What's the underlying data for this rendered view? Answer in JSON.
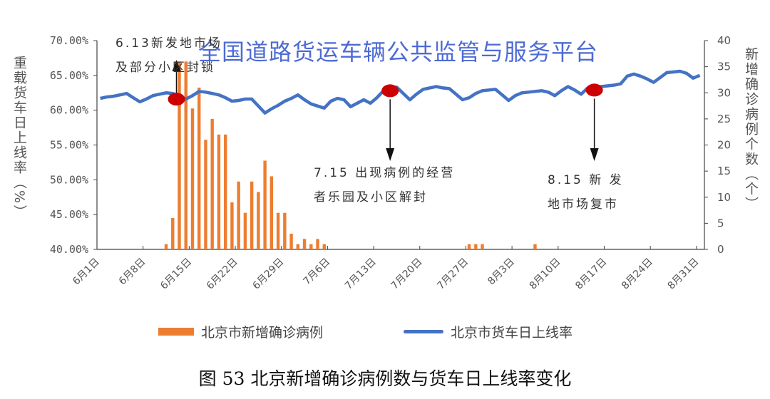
{
  "chart_data": {
    "type": "bar+line",
    "title": "",
    "watermark": "全国道路货运车辆公共监管与服务平台",
    "caption": "图 53  北京新增确诊病例数与货车日上线率变化",
    "ylabel_left": "重载货车日上线率（%）",
    "ylabel_right": "新增确诊病例个数（个）",
    "ylim_left": [
      40,
      70
    ],
    "ylim_right": [
      0,
      40
    ],
    "yticks_left": [
      "40.00%",
      "45.00%",
      "50.00%",
      "55.00%",
      "60.00%",
      "65.00%",
      "70.00%"
    ],
    "yticks_right": [
      "0",
      "5",
      "10",
      "15",
      "20",
      "25",
      "30",
      "35",
      "40"
    ],
    "x_start": "6月1日",
    "x_end": "8月31日",
    "xticks": [
      "6月1日",
      "6月8日",
      "6月15日",
      "6月22日",
      "6月29日",
      "7月6日",
      "7月13日",
      "7月20日",
      "7月27日",
      "8月3日",
      "8月10日",
      "8月17日",
      "8月24日",
      "8月31日"
    ],
    "grid": false,
    "legend_position": "bottom",
    "colors": {
      "bar": "#ed7d31",
      "line": "#4472c4",
      "marker": "#cc0000"
    },
    "series": [
      {
        "name": "北京市新增确诊病例",
        "type": "bar",
        "axis": "right",
        "points": [
          [
            "6-11",
            1
          ],
          [
            "6-12",
            6
          ],
          [
            "6-13",
            36
          ],
          [
            "6-14",
            36
          ],
          [
            "6-15",
            27
          ],
          [
            "6-16",
            31
          ],
          [
            "6-17",
            21
          ],
          [
            "6-18",
            25
          ],
          [
            "6-19",
            22
          ],
          [
            "6-20",
            22
          ],
          [
            "6-21",
            9
          ],
          [
            "6-22",
            13
          ],
          [
            "6-23",
            7
          ],
          [
            "6-24",
            13
          ],
          [
            "6-25",
            11
          ],
          [
            "6-26",
            17
          ],
          [
            "6-27",
            14
          ],
          [
            "6-28",
            7
          ],
          [
            "6-29",
            7
          ],
          [
            "6-30",
            3
          ],
          [
            "7-01",
            1
          ],
          [
            "7-02",
            2
          ],
          [
            "7-03",
            1
          ],
          [
            "7-04",
            2
          ],
          [
            "7-05",
            1
          ],
          [
            "7-27",
            1
          ],
          [
            "7-28",
            1
          ],
          [
            "7-29",
            1
          ],
          [
            "8-06",
            1
          ]
        ]
      },
      {
        "name": "北京市货车日上线率",
        "type": "line",
        "axis": "left",
        "values": [
          61.7,
          61.9,
          62.0,
          62.2,
          62.4,
          61.8,
          61.2,
          61.6,
          62.1,
          62.3,
          62.5,
          62.4,
          62.0,
          61.6,
          62.1,
          62.7,
          62.6,
          62.4,
          62.2,
          61.8,
          61.3,
          61.4,
          61.6,
          61.6,
          60.6,
          59.6,
          60.2,
          60.7,
          61.3,
          61.7,
          62.2,
          61.5,
          60.9,
          60.6,
          60.3,
          61.3,
          61.7,
          61.5,
          60.5,
          61.0,
          61.5,
          61.0,
          61.8,
          62.8,
          63.2,
          63.3,
          62.4,
          61.5,
          62.3,
          63.0,
          63.2,
          63.4,
          63.2,
          63.1,
          62.3,
          61.5,
          61.8,
          62.4,
          62.8,
          62.9,
          63.0,
          62.2,
          61.4,
          62.1,
          62.5,
          62.6,
          62.7,
          62.8,
          62.6,
          62.1,
          62.8,
          63.4,
          62.9,
          62.3,
          63.2,
          63.3,
          63.4,
          63.5,
          63.6,
          63.8,
          64.9,
          65.2,
          64.9,
          64.5,
          64.0,
          64.7,
          65.4,
          65.5,
          65.6,
          65.3,
          64.6,
          65.0
        ]
      }
    ],
    "annotations": [
      {
        "date": "6-13",
        "lines": [
          "6.13新发地市场",
          "及部分小区封锁"
        ],
        "arrow": "up"
      },
      {
        "date": "7-15",
        "lines": [
          "7.15 出现病例的经营",
          "者乐园及小区解封"
        ],
        "arrow": "down"
      },
      {
        "date": "8-15",
        "lines": [
          "8.15  新 发",
          "地市场复市"
        ],
        "arrow": "down"
      }
    ]
  }
}
